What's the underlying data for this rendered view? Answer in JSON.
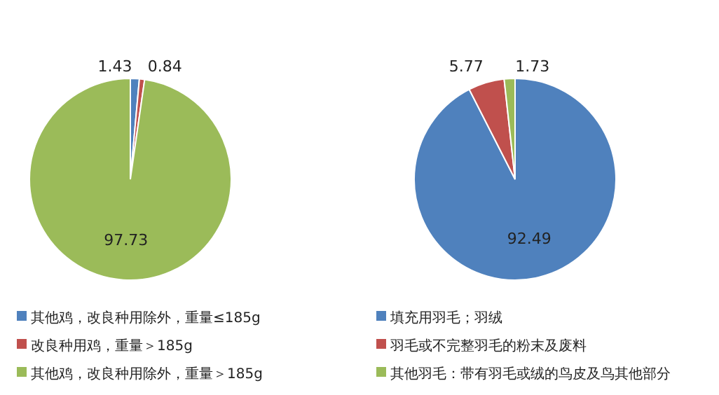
{
  "chart_data": [
    {
      "type": "pie",
      "categories": [
        "其他鸡，改良种用除外，重量≤185g",
        "改良种用鸡，重量＞185g",
        "其他鸡，改良种用除外，重量＞185g"
      ],
      "values": [
        1.43,
        0.84,
        97.73
      ],
      "colors": [
        "#4f81bd",
        "#c0504d",
        "#9bbb59"
      ],
      "data_labels": true,
      "legend": "bottom"
    },
    {
      "type": "pie",
      "categories": [
        "填充用羽毛；羽绒",
        "羽毛或不完整羽毛的粉末及废料",
        "其他羽毛：带有羽毛或绒的鸟皮及鸟其他部分"
      ],
      "values": [
        92.49,
        5.77,
        1.73
      ],
      "colors": [
        "#4f81bd",
        "#c0504d",
        "#9bbb59"
      ],
      "data_labels": true,
      "legend": "bottom"
    }
  ]
}
